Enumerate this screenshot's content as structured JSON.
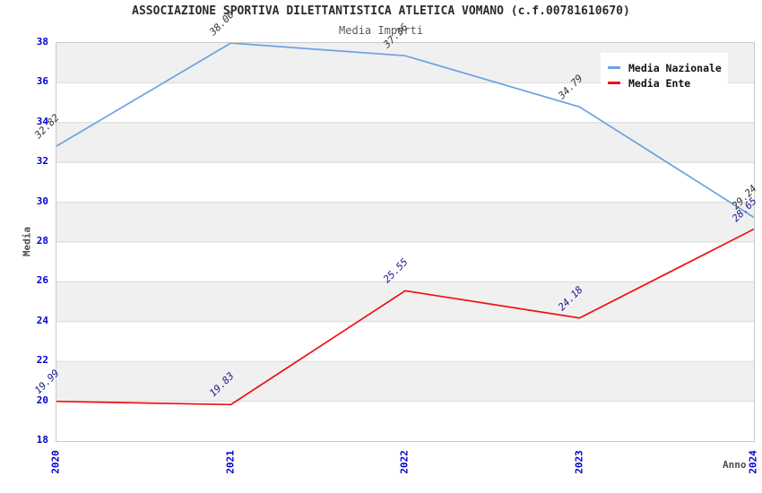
{
  "chart_data": {
    "type": "line",
    "title": "ASSOCIAZIONE SPORTIVA DILETTANTISTICA ATLETICA VOMANO (c.f.00781610670)",
    "subtitle": "Media Importi",
    "xlabel": "Anno",
    "ylabel": "Media",
    "categories": [
      "2020",
      "2021",
      "2022",
      "2023",
      "2024"
    ],
    "series": [
      {
        "name": "Media Nazionale",
        "color": "#6CA2E2",
        "label_color": "#333333",
        "values": [
          32.82,
          38.0,
          37.36,
          34.79,
          29.24
        ]
      },
      {
        "name": "Media Ente",
        "color": "#EE1111",
        "label_color": "#1A1A8E",
        "values": [
          19.99,
          19.83,
          25.55,
          24.18,
          28.65
        ]
      }
    ],
    "ylim": [
      18,
      38
    ],
    "yticks": [
      18,
      20,
      22,
      24,
      26,
      28,
      30,
      32,
      34,
      36,
      38
    ],
    "grid": "horizontal-bands",
    "legend_position": "top-right",
    "styles": {
      "tick_label_color": "#0000CC",
      "axis_title_color": "#4D4D4D",
      "title_color": "#2B2B2B",
      "subtitle_color": "#5A5A5A",
      "band_color": "#F0F0F0",
      "gridline_color": "#D9D9D9",
      "frame_color": "#C9C9C9",
      "legend_bg": "#FFFFFF"
    }
  }
}
